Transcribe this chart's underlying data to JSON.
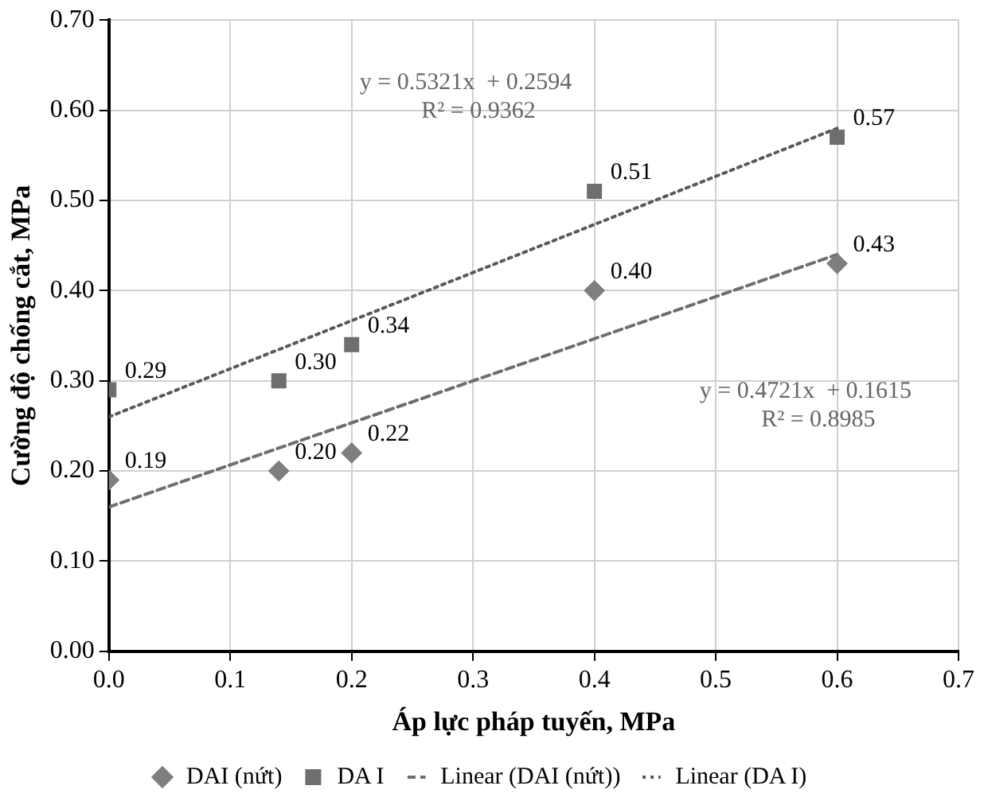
{
  "chart_data": {
    "type": "scatter",
    "xlabel": "Áp lực pháp tuyến, MPa",
    "ylabel": "Cường độ chống cắt, MPa",
    "xlim": [
      0,
      0.7
    ],
    "xticks": [
      {
        "value": 0,
        "label": "0.0"
      },
      0.1,
      0.2,
      0.3,
      0.4,
      0.5,
      0.6,
      0.7
    ],
    "ylim": [
      0,
      0.7
    ],
    "yticks": [
      {
        "value": 0,
        "label": "0.00"
      },
      {
        "value": 0.1,
        "label": "0.10"
      },
      {
        "value": 0.2,
        "label": "0.20"
      },
      {
        "value": 0.3,
        "label": "0.30"
      },
      {
        "value": 0.4,
        "label": "0.40"
      },
      {
        "value": 0.5,
        "label": "0.50"
      },
      {
        "value": 0.6,
        "label": "0.60"
      },
      {
        "value": 0.7,
        "label": "0.70"
      }
    ],
    "grid": true,
    "legend": "bottom",
    "annotations": [
      "y = 0.5321x  + 0.2594\nR² = 0.9362",
      "y = 0.4721x  + 0.1615\nR² = 0.8985"
    ],
    "series": [
      {
        "name": "DAI (nứt)",
        "type": "scatter",
        "marker": "diamond",
        "color": "#7f7f7f",
        "x": [
          0,
          0.14,
          0.2,
          0.4,
          0.6
        ],
        "values": [
          0.19,
          0.2,
          0.22,
          0.4,
          0.43
        ],
        "value_labels": [
          "0.19",
          "0.20",
          "0.22",
          "0.40",
          "0.43"
        ]
      },
      {
        "name": "DA I",
        "type": "scatter",
        "marker": "square",
        "color": "#6e6e6e",
        "x": [
          0,
          0.14,
          0.2,
          0.4,
          0.6
        ],
        "values": [
          0.29,
          0.3,
          0.34,
          0.51,
          0.57
        ],
        "value_labels": [
          "0.29",
          "0.30",
          "0.34",
          "0.51",
          "0.57"
        ]
      },
      {
        "name": "Linear (DAI (nứt))",
        "type": "line",
        "line_style": "dashed",
        "marker": "none",
        "color": "#6e6e6e",
        "x": [
          0,
          0.6
        ],
        "values": [
          0.16,
          0.44
        ]
      },
      {
        "name": "Linear (DA I)",
        "type": "line",
        "line_style": "dotted",
        "marker": "none",
        "color": "#5a5a5a",
        "x": [
          0,
          0.6
        ],
        "values": [
          0.26,
          0.58
        ]
      }
    ]
  }
}
